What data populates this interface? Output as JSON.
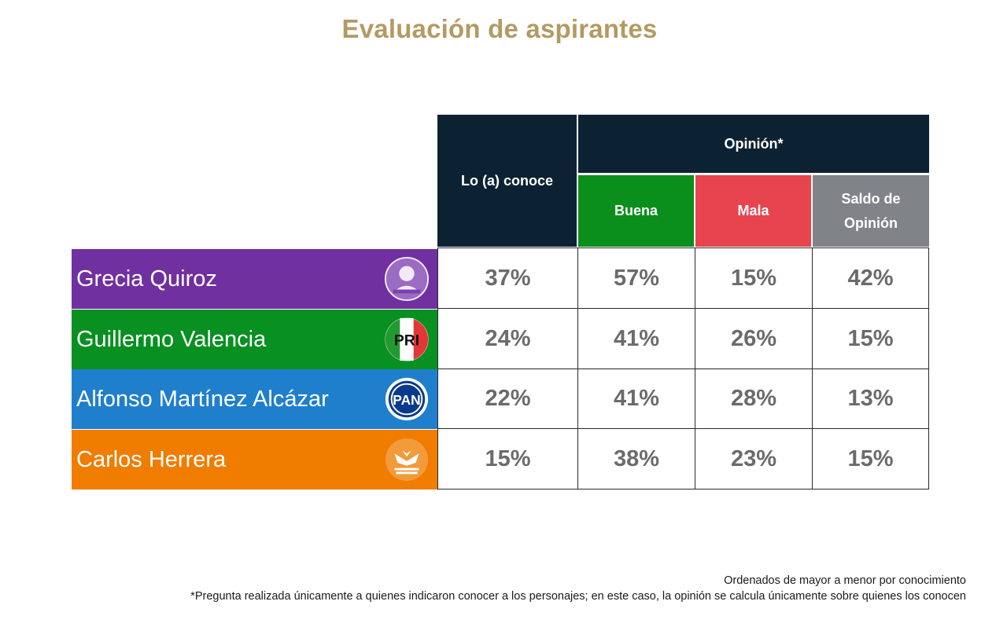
{
  "title": "Evaluación de aspirantes",
  "headers": {
    "conoce": "Lo (a) conoce",
    "opinion": "Opinión*",
    "buena": "Buena",
    "mala": "Mala",
    "saldo_line1": "Saldo de",
    "saldo_line2": "Opinión"
  },
  "colors": {
    "title": "#b39a63",
    "navy": "#0c2233",
    "buena": "#0a8f1c",
    "mala": "#e8444f",
    "saldo": "#808387"
  },
  "rows": [
    {
      "name": "Grecia Quiroz",
      "color": "#7030a0",
      "logo": "independent-candidate-logo",
      "conoce": "37%",
      "buena": "57%",
      "mala": "15%",
      "saldo": "42%"
    },
    {
      "name": "Guillermo Valencia",
      "color": "#089020",
      "logo": "pri-logo",
      "conoce": "24%",
      "buena": "41%",
      "mala": "26%",
      "saldo": "15%"
    },
    {
      "name": "Alfonso Martínez Alcázar",
      "color": "#1f7fcc",
      "logo": "pan-logo",
      "conoce": "22%",
      "buena": "41%",
      "mala": "28%",
      "saldo": "13%"
    },
    {
      "name": "Carlos Herrera",
      "color": "#f07c00",
      "logo": "movimiento-ciudadano-logo",
      "conoce": "15%",
      "buena": "38%",
      "mala": "23%",
      "saldo": "15%"
    }
  ],
  "footnotes": {
    "order": "Ordenados de mayor a menor por conocimiento",
    "question": "*Pregunta realizada únicamente a quienes indicaron conocer a los personajes; en este caso, la opinión se calcula únicamente sobre quienes los conocen"
  }
}
